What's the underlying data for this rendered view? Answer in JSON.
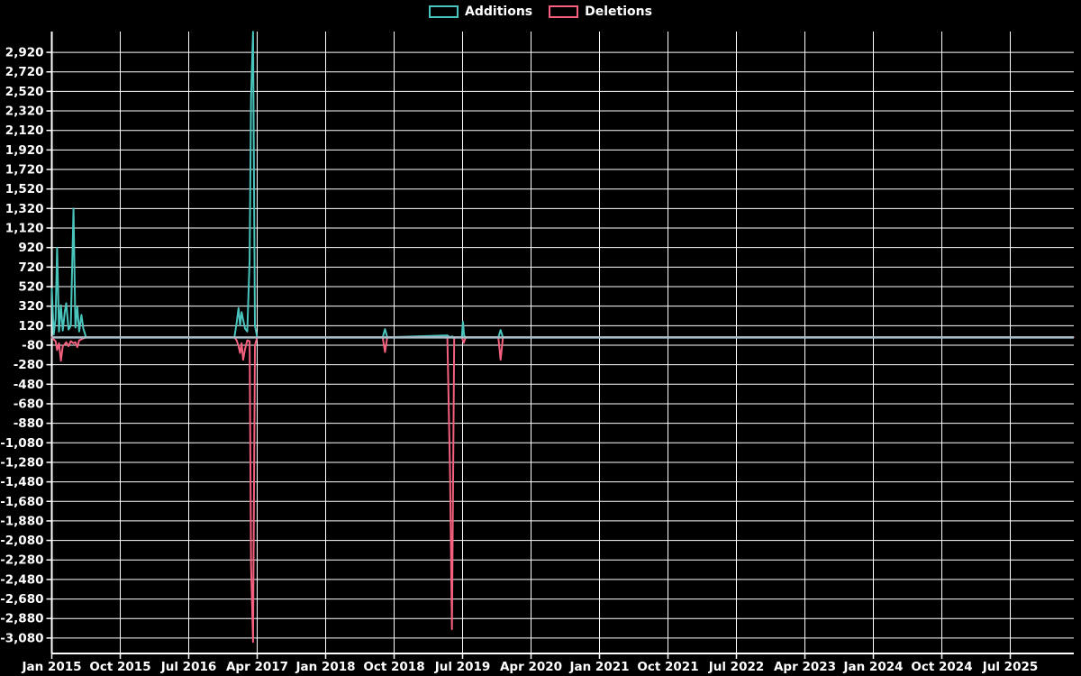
{
  "legend": {
    "items": [
      {
        "label": "Additions",
        "color": "#4ac5bd"
      },
      {
        "label": "Deletions",
        "color": "#f4607d"
      }
    ]
  },
  "colors": {
    "background": "#000000",
    "grid": "#ffffff",
    "axis": "#ffffff",
    "text": "#ffffff",
    "zero_line": "#a8bfc9",
    "additions": "#4ac5bd",
    "deletions": "#f4607d"
  },
  "chart_data": {
    "type": "line",
    "title": "",
    "xlabel": "",
    "ylabel": "",
    "grid": true,
    "legend_position": "top-center",
    "x_axis": {
      "unit": "months since Jan 2015",
      "tick_interval_months": 9,
      "tick_labels": [
        "Jan 2015",
        "Oct 2015",
        "Jul 2016",
        "Apr 2017",
        "Jan 2018",
        "Oct 2018",
        "Jul 2019",
        "Apr 2020",
        "Jan 2021",
        "Oct 2021",
        "Jul 2022",
        "Apr 2023",
        "Jan 2024",
        "Oct 2024",
        "Jul 2025"
      ],
      "data_end_month": 134.3
    },
    "y_axis": {
      "min": -3238,
      "max": 3133,
      "tick_step": 200,
      "tick_values": [
        2920,
        2720,
        2520,
        2320,
        2120,
        1920,
        1720,
        1520,
        1320,
        1120,
        920,
        720,
        520,
        320,
        120,
        -80,
        -280,
        -480,
        -680,
        -880,
        -1080,
        -1280,
        -1480,
        -1680,
        -1880,
        -2080,
        -2280,
        -2480,
        -2680,
        -2880,
        -3080
      ]
    },
    "zero_line_color": "#a8bfc9",
    "series": [
      {
        "name": "Additions",
        "color": "#4ac5bd",
        "points": [
          [
            0,
            500
          ],
          [
            0.25,
            30
          ],
          [
            0.5,
            190
          ],
          [
            0.7,
            920
          ],
          [
            0.95,
            60
          ],
          [
            1.2,
            330
          ],
          [
            1.45,
            70
          ],
          [
            1.7,
            260
          ],
          [
            1.9,
            350
          ],
          [
            2.2,
            80
          ],
          [
            2.5,
            120
          ],
          [
            2.85,
            1320
          ],
          [
            3.1,
            100
          ],
          [
            3.35,
            310
          ],
          [
            3.6,
            60
          ],
          [
            3.9,
            230
          ],
          [
            4.15,
            90
          ],
          [
            4.5,
            0
          ],
          [
            24,
            0
          ],
          [
            24.3,
            150
          ],
          [
            24.55,
            300
          ],
          [
            24.75,
            120
          ],
          [
            24.95,
            260
          ],
          [
            25.15,
            180
          ],
          [
            25.4,
            90
          ],
          [
            25.7,
            60
          ],
          [
            26,
            800
          ],
          [
            26.2,
            2450
          ],
          [
            26.45,
            3130
          ],
          [
            26.7,
            120
          ],
          [
            27,
            0
          ],
          [
            43.5,
            0
          ],
          [
            43.8,
            85
          ],
          [
            44.1,
            0
          ],
          [
            52,
            20
          ],
          [
            52.35,
            0
          ],
          [
            52.6,
            10
          ],
          [
            52.9,
            0
          ],
          [
            53.9,
            0
          ],
          [
            54.05,
            160
          ],
          [
            54.2,
            20
          ],
          [
            54.4,
            0
          ],
          [
            58.7,
            0
          ],
          [
            59,
            75
          ],
          [
            59.3,
            0
          ],
          [
            134.3,
            0
          ]
        ]
      },
      {
        "name": "Deletions",
        "color": "#f4607d",
        "points": [
          [
            0,
            0
          ],
          [
            0.25,
            -20
          ],
          [
            0.5,
            -40
          ],
          [
            0.7,
            -130
          ],
          [
            0.95,
            -60
          ],
          [
            1.2,
            -240
          ],
          [
            1.45,
            -90
          ],
          [
            1.7,
            -70
          ],
          [
            1.9,
            -50
          ],
          [
            2.2,
            -90
          ],
          [
            2.5,
            -40
          ],
          [
            2.85,
            -60
          ],
          [
            3.1,
            -50
          ],
          [
            3.35,
            -100
          ],
          [
            3.6,
            -30
          ],
          [
            3.9,
            -20
          ],
          [
            4.15,
            -10
          ],
          [
            4.5,
            0
          ],
          [
            24,
            0
          ],
          [
            24.3,
            -30
          ],
          [
            24.55,
            -90
          ],
          [
            24.75,
            -160
          ],
          [
            24.95,
            -60
          ],
          [
            25.15,
            -230
          ],
          [
            25.4,
            -120
          ],
          [
            25.7,
            -30
          ],
          [
            26,
            -40
          ],
          [
            26.2,
            -2330
          ],
          [
            26.45,
            -3120
          ],
          [
            26.7,
            -80
          ],
          [
            27,
            0
          ],
          [
            43.5,
            0
          ],
          [
            43.8,
            -150
          ],
          [
            44.1,
            0
          ],
          [
            52,
            0
          ],
          [
            52.35,
            -1390
          ],
          [
            52.6,
            -2990
          ],
          [
            52.9,
            0
          ],
          [
            53.9,
            0
          ],
          [
            54.15,
            -55
          ],
          [
            54.4,
            0
          ],
          [
            58.7,
            0
          ],
          [
            59,
            -230
          ],
          [
            59.3,
            0
          ],
          [
            134.3,
            0
          ]
        ]
      }
    ]
  }
}
